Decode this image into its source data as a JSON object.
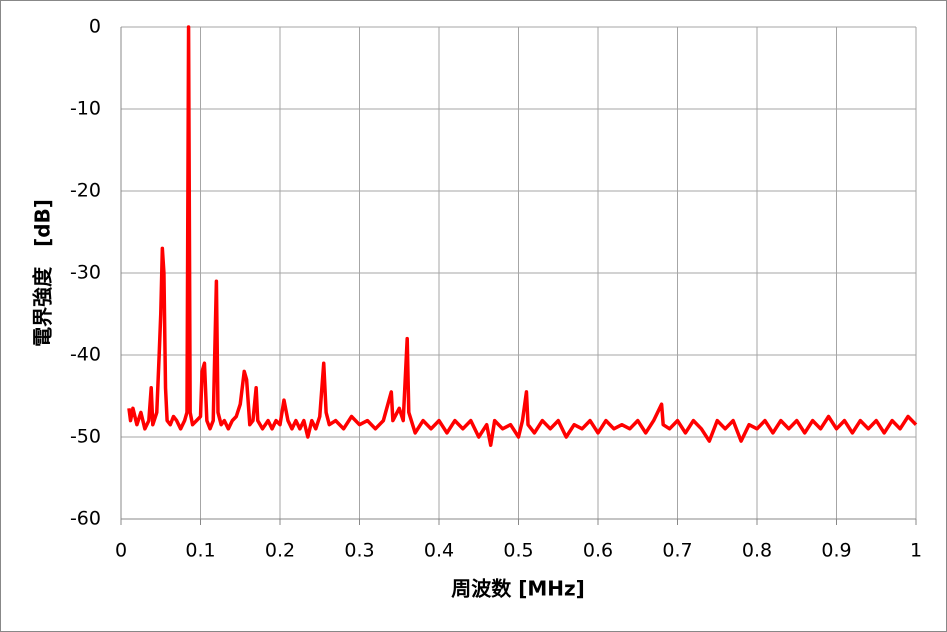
{
  "chart_data": {
    "type": "line",
    "x_label": "周波数 [MHz]",
    "y_label": "電界強度　[dB]",
    "xlim": [
      0,
      1
    ],
    "xticks": [
      0,
      0.1,
      0.2,
      0.3,
      0.4,
      0.5,
      0.6,
      0.7,
      0.8,
      0.9,
      1
    ],
    "ylim": [
      -60,
      0
    ],
    "yticks": [
      0,
      -10,
      -20,
      -30,
      -40,
      -50,
      -60
    ],
    "grid": true,
    "color": "#ff0000",
    "x": [
      0.01,
      0.012,
      0.015,
      0.02,
      0.025,
      0.03,
      0.035,
      0.038,
      0.04,
      0.045,
      0.048,
      0.05,
      0.052,
      0.054,
      0.056,
      0.058,
      0.062,
      0.066,
      0.07,
      0.075,
      0.08,
      0.083,
      0.085,
      0.087,
      0.09,
      0.095,
      0.1,
      0.102,
      0.105,
      0.108,
      0.112,
      0.116,
      0.12,
      0.122,
      0.126,
      0.13,
      0.135,
      0.14,
      0.145,
      0.15,
      0.155,
      0.158,
      0.162,
      0.166,
      0.17,
      0.172,
      0.178,
      0.185,
      0.19,
      0.195,
      0.2,
      0.205,
      0.21,
      0.215,
      0.22,
      0.225,
      0.23,
      0.235,
      0.24,
      0.245,
      0.25,
      0.255,
      0.258,
      0.262,
      0.27,
      0.28,
      0.29,
      0.3,
      0.31,
      0.32,
      0.33,
      0.34,
      0.342,
      0.35,
      0.355,
      0.36,
      0.362,
      0.37,
      0.38,
      0.39,
      0.4,
      0.41,
      0.42,
      0.43,
      0.44,
      0.45,
      0.46,
      0.465,
      0.47,
      0.48,
      0.49,
      0.5,
      0.505,
      0.51,
      0.512,
      0.52,
      0.53,
      0.54,
      0.55,
      0.56,
      0.57,
      0.58,
      0.59,
      0.6,
      0.61,
      0.62,
      0.63,
      0.64,
      0.65,
      0.66,
      0.67,
      0.68,
      0.682,
      0.69,
      0.7,
      0.71,
      0.72,
      0.73,
      0.74,
      0.75,
      0.76,
      0.77,
      0.78,
      0.79,
      0.8,
      0.81,
      0.82,
      0.83,
      0.84,
      0.85,
      0.86,
      0.87,
      0.88,
      0.89,
      0.9,
      0.91,
      0.92,
      0.93,
      0.94,
      0.95,
      0.96,
      0.97,
      0.98,
      0.99,
      1
    ],
    "values": [
      -46.5,
      -48,
      -46.5,
      -48.5,
      -47,
      -49,
      -48,
      -44,
      -48.5,
      -47,
      -40,
      -35,
      -27,
      -30,
      -44,
      -48,
      -48.5,
      -47.5,
      -48,
      -49,
      -48,
      -47,
      0,
      -47,
      -48.5,
      -48,
      -47.5,
      -42,
      -41,
      -48,
      -49,
      -48,
      -31,
      -47,
      -48.5,
      -48,
      -49,
      -48,
      -47.5,
      -46,
      -42,
      -43,
      -48.5,
      -48,
      -44,
      -48,
      -49,
      -48,
      -49,
      -48,
      -48.5,
      -45.5,
      -48,
      -49,
      -48,
      -49,
      -48,
      -50,
      -48,
      -49,
      -47.5,
      -41,
      -47,
      -48.5,
      -48,
      -49,
      -47.5,
      -48.5,
      -48,
      -49,
      -48,
      -44.5,
      -48,
      -46.5,
      -48,
      -38,
      -47,
      -49.5,
      -48,
      -49,
      -48,
      -49.5,
      -48,
      -49,
      -48,
      -50,
      -48.5,
      -51,
      -48,
      -49,
      -48.5,
      -50,
      -48,
      -44.5,
      -48.5,
      -49.5,
      -48,
      -49,
      -48,
      -50,
      -48.5,
      -49,
      -48,
      -49.5,
      -48,
      -49,
      -48.5,
      -49,
      -48,
      -49.5,
      -48,
      -46,
      -48.5,
      -49,
      -48,
      -49.5,
      -48,
      -49,
      -50.5,
      -48,
      -49,
      -48,
      -50.5,
      -48.5,
      -49,
      -48,
      -49.5,
      -48,
      -49,
      -48,
      -49.5,
      -48,
      -49,
      -47.5,
      -49,
      -48,
      -49.5,
      -48,
      -49,
      -48,
      -49.5,
      -48,
      -49,
      -47.5,
      -48.5
    ]
  }
}
